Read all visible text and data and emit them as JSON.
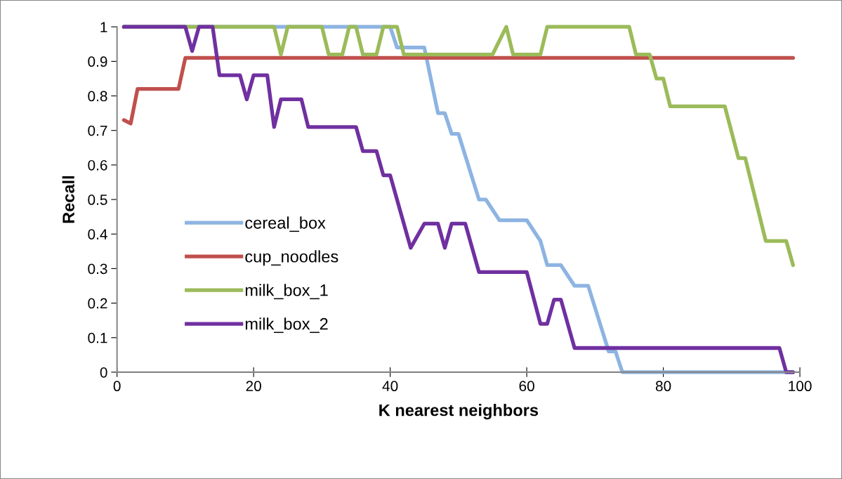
{
  "chart_data": {
    "type": "line",
    "xlabel": "K nearest neighbors",
    "ylabel": "Recall",
    "xlim": [
      0,
      100
    ],
    "xticks": [
      0,
      20,
      40,
      60,
      80,
      100
    ],
    "ylim": [
      0,
      1
    ],
    "yticks": [
      0,
      0.1,
      0.2,
      0.3,
      0.4,
      0.5,
      0.6,
      0.7,
      0.8,
      0.9,
      1
    ],
    "grid": false,
    "legend": "left",
    "marker": "none",
    "line_style": "solid",
    "series": [
      {
        "name": "cereal_box",
        "color": "#8db4e2",
        "x": [
          1,
          40,
          41,
          45,
          47,
          48,
          49,
          50,
          53,
          54,
          56,
          60,
          62,
          63,
          65,
          67,
          69,
          72,
          73,
          74,
          99
        ],
        "values": [
          1,
          1,
          0.94,
          0.94,
          0.75,
          0.75,
          0.69,
          0.69,
          0.5,
          0.5,
          0.44,
          0.44,
          0.38,
          0.31,
          0.31,
          0.25,
          0.25,
          0.06,
          0.06,
          0,
          0
        ]
      },
      {
        "name": "cup_noodles",
        "color": "#c0504d",
        "x": [
          1,
          2,
          3,
          9,
          10,
          11,
          99
        ],
        "values": [
          0.73,
          0.72,
          0.82,
          0.82,
          0.91,
          0.91,
          0.91
        ]
      },
      {
        "name": "milk_box_1",
        "color": "#9bbb59",
        "x": [
          1,
          23,
          24,
          25,
          30,
          31,
          33,
          34,
          35,
          36,
          37,
          38,
          39,
          40,
          41,
          42,
          55,
          57,
          58,
          59,
          62,
          63,
          75,
          76,
          78,
          79,
          80,
          81,
          89,
          91,
          92,
          95,
          97,
          98,
          99
        ],
        "values": [
          1,
          1,
          0.92,
          1,
          1,
          0.92,
          0.92,
          1,
          1,
          0.92,
          0.92,
          0.92,
          1,
          1,
          1,
          0.92,
          0.92,
          1,
          0.92,
          0.92,
          0.92,
          1,
          1,
          0.92,
          0.92,
          0.85,
          0.85,
          0.77,
          0.77,
          0.62,
          0.62,
          0.38,
          0.38,
          0.38,
          0.31
        ]
      },
      {
        "name": "milk_box_2",
        "color": "#7030a0",
        "x": [
          1,
          10,
          11,
          12,
          14,
          15,
          18,
          19,
          20,
          22,
          23,
          24,
          27,
          28,
          35,
          36,
          38,
          39,
          40,
          42,
          43,
          45,
          46,
          47,
          48,
          49,
          50,
          51,
          53,
          60,
          62,
          63,
          64,
          65,
          67,
          97,
          98,
          99
        ],
        "values": [
          1,
          1,
          0.93,
          1,
          1,
          0.86,
          0.86,
          0.79,
          0.86,
          0.86,
          0.71,
          0.79,
          0.79,
          0.71,
          0.71,
          0.64,
          0.64,
          0.57,
          0.57,
          0.43,
          0.36,
          0.43,
          0.43,
          0.43,
          0.36,
          0.43,
          0.43,
          0.43,
          0.29,
          0.29,
          0.14,
          0.14,
          0.21,
          0.21,
          0.07,
          0.07,
          0,
          0
        ]
      }
    ]
  }
}
